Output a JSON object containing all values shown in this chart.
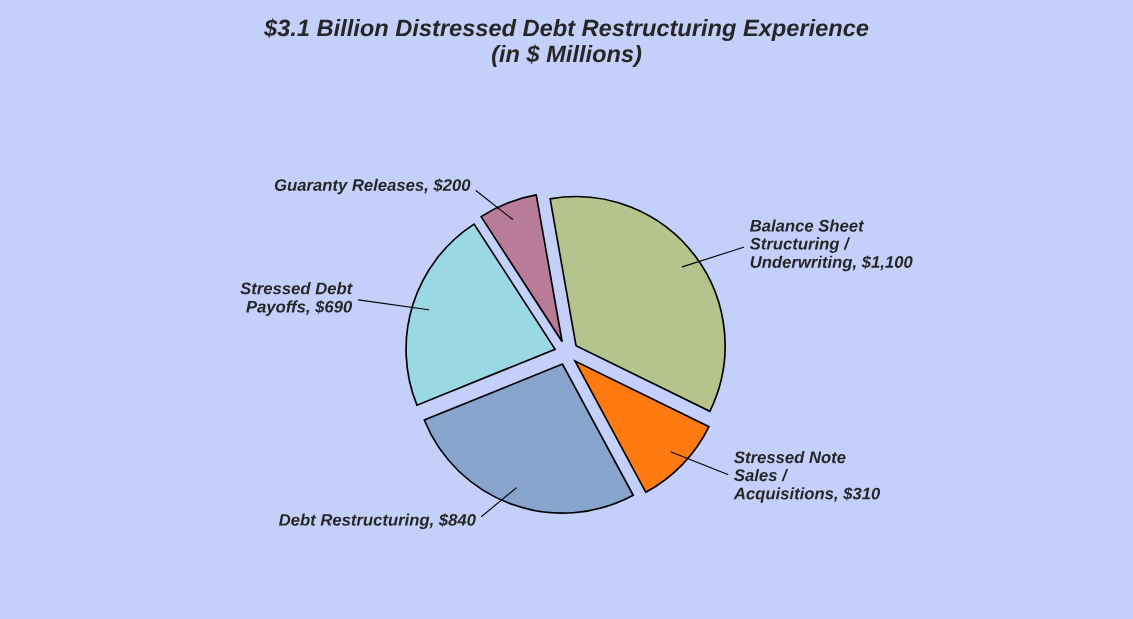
{
  "chart_data": {
    "type": "pie",
    "title": "$3.1 Billion Distressed Debt Restructuring Experience\n(in $ Millions)",
    "categories": [
      "Balance Sheet Structuring / Underwriting",
      "Stressed Note Sales / Acquisitions",
      "Debt Restructuring",
      "Stressed Debt Payoffs",
      "Guaranty Releases"
    ],
    "values": [
      1100,
      310,
      840,
      690,
      200
    ],
    "value_labels": [
      "$1,100",
      "$310",
      "$840",
      "$690",
      "$200"
    ],
    "colors": [
      "#b4c48c",
      "#ff7a10",
      "#86a4cc",
      "#9ad8e4",
      "#b87c98"
    ],
    "legend": false
  }
}
